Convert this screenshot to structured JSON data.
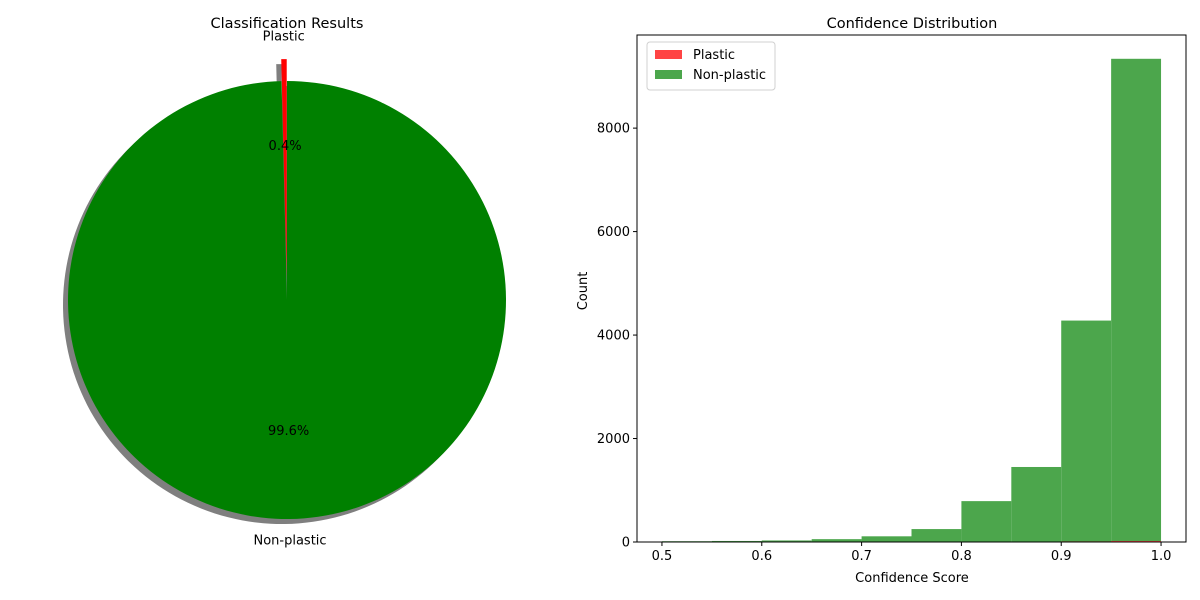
{
  "chart_data": [
    {
      "type": "pie",
      "title": "Classification Results",
      "labels": [
        "Plastic",
        "Non-plastic"
      ],
      "values": [
        0.4,
        99.6
      ],
      "percent_labels": [
        "0.4%",
        "99.6%"
      ],
      "colors": [
        "#ff0000",
        "#008000"
      ],
      "explode": [
        0.1,
        0
      ],
      "shadow": true,
      "start_angle": 90
    },
    {
      "type": "bar",
      "title": "Confidence Distribution",
      "xlabel": "Confidence Score",
      "ylabel": "Count",
      "xlim": [
        0.475,
        1.025
      ],
      "ylim": [
        0,
        9800
      ],
      "xticks": [
        0.5,
        0.6,
        0.7,
        0.8,
        0.9,
        1.0
      ],
      "xtick_labels": [
        "0.5",
        "0.6",
        "0.7",
        "0.8",
        "0.9",
        "1.0"
      ],
      "yticks": [
        0,
        2000,
        4000,
        6000,
        8000
      ],
      "ytick_labels": [
        "0",
        "2000",
        "4000",
        "6000",
        "8000"
      ],
      "bin_edges": [
        0.5,
        0.55,
        0.6,
        0.65,
        0.7,
        0.75,
        0.8,
        0.85,
        0.9,
        0.95,
        1.0
      ],
      "legend_position": "upper-left",
      "series": [
        {
          "name": "Plastic",
          "color": "#ff4444",
          "values": [
            0,
            0,
            0,
            0,
            2,
            3,
            5,
            8,
            12,
            20
          ]
        },
        {
          "name": "Non-plastic",
          "color": "#4ca64c",
          "values": [
            15,
            20,
            30,
            55,
            110,
            250,
            790,
            1450,
            4280,
            9340
          ]
        }
      ]
    }
  ]
}
